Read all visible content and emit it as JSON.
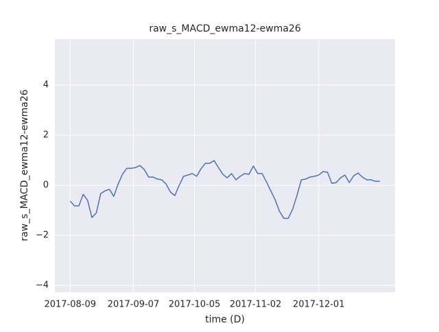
{
  "chart_data": {
    "type": "line",
    "title": "raw_s_MACD_ewma12-ewma26",
    "x_label": "time (D)",
    "y_label": "raw_s_MACD_ewma12-ewma26",
    "x": [
      "2017-08-09",
      "2017-08-11",
      "2017-08-13",
      "2017-08-15",
      "2017-08-17",
      "2017-08-19",
      "2017-08-21",
      "2017-08-23",
      "2017-08-25",
      "2017-08-27",
      "2017-08-29",
      "2017-08-31",
      "2017-09-02",
      "2017-09-04",
      "2017-09-06",
      "2017-09-08",
      "2017-09-10",
      "2017-09-12",
      "2017-09-14",
      "2017-09-16",
      "2017-09-18",
      "2017-09-20",
      "2017-09-22",
      "2017-09-24",
      "2017-09-26",
      "2017-09-28",
      "2017-09-30",
      "2017-10-02",
      "2017-10-04",
      "2017-10-06",
      "2017-10-08",
      "2017-10-10",
      "2017-10-12",
      "2017-10-14",
      "2017-10-16",
      "2017-10-18",
      "2017-10-20",
      "2017-10-22",
      "2017-10-24",
      "2017-10-26",
      "2017-10-28",
      "2017-10-30",
      "2017-11-01",
      "2017-11-03",
      "2017-11-05",
      "2017-11-07",
      "2017-11-09",
      "2017-11-11",
      "2017-11-13",
      "2017-11-15",
      "2017-11-17",
      "2017-11-19",
      "2017-11-21",
      "2017-11-23",
      "2017-11-25",
      "2017-11-27",
      "2017-11-29",
      "2017-12-01",
      "2017-12-03",
      "2017-12-05",
      "2017-12-07",
      "2017-12-09",
      "2017-12-11",
      "2017-12-13",
      "2017-12-15",
      "2017-12-17",
      "2017-12-19",
      "2017-12-21",
      "2017-12-23",
      "2017-12-25",
      "2017-12-27",
      "2017-12-29"
    ],
    "series": [
      {
        "color": "#4c72b0",
        "values": [
          -0.63,
          -0.82,
          -0.82,
          -0.36,
          -0.6,
          -1.29,
          -1.1,
          -0.33,
          -0.22,
          -0.16,
          -0.44,
          0.05,
          0.44,
          0.68,
          0.68,
          0.71,
          0.79,
          0.63,
          0.33,
          0.33,
          0.25,
          0.22,
          0.05,
          -0.27,
          -0.41,
          0.0,
          0.36,
          0.41,
          0.47,
          0.36,
          0.66,
          0.88,
          0.88,
          0.99,
          0.71,
          0.44,
          0.3,
          0.47,
          0.22,
          0.36,
          0.47,
          0.44,
          0.77,
          0.47,
          0.47,
          0.14,
          -0.22,
          -0.58,
          -1.04,
          -1.32,
          -1.32,
          -0.96,
          -0.41,
          0.22,
          0.25,
          0.33,
          0.36,
          0.41,
          0.55,
          0.52,
          0.08,
          0.11,
          0.3,
          0.41,
          0.11,
          0.38,
          0.49,
          0.33,
          0.22,
          0.22,
          0.16,
          0.16
        ]
      }
    ],
    "xlim": [
      "2017-08-02",
      "2018-01-05"
    ],
    "xticks": [
      "2017-08-09",
      "2017-09-07",
      "2017-10-05",
      "2017-11-02",
      "2017-12-01"
    ],
    "ylim": [
      -4.27,
      5.84
    ],
    "yticks": [
      {
        "value": -4,
        "label": "−4"
      },
      {
        "value": -2,
        "label": "−2"
      },
      0,
      2,
      4
    ],
    "grid": true
  }
}
